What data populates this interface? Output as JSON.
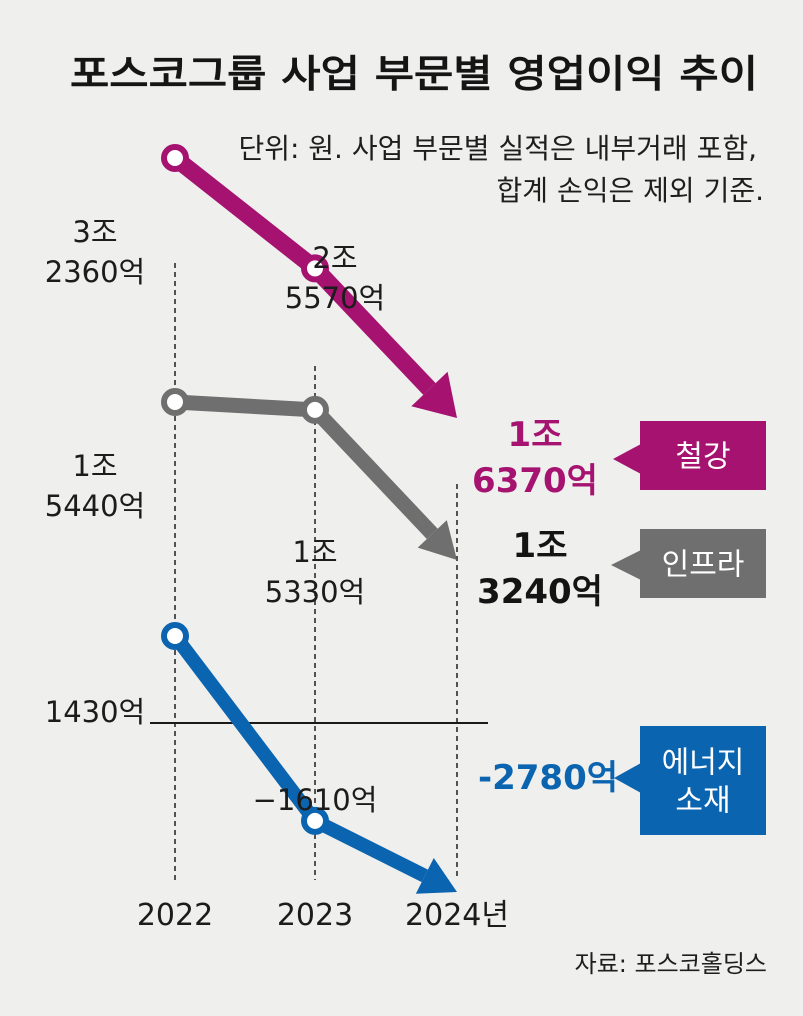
{
  "title": "포스코그룹 사업 부문별 영업이익 추이",
  "subtitle_lines": [
    "단위: 원. 사업 부문별 실적은 내부거래 포함,",
    "합계 손익은 제외 기준."
  ],
  "source": "자료: 포스코홀딩스",
  "colors": {
    "steel": "#a5126f",
    "infra": "#6f6f6f",
    "energy": "#0b64b0",
    "background": "#efefed"
  },
  "chart_data": {
    "type": "line",
    "x": [
      "2022",
      "2023",
      "2024년"
    ],
    "unit": "억원",
    "series": [
      {
        "name": "철강",
        "color": "#a5126f",
        "values": [
          32360,
          25570,
          16370
        ],
        "labels": [
          [
            "3조",
            "2360억"
          ],
          [
            "2조",
            "5570억"
          ],
          [
            "1조",
            "6370억"
          ]
        ]
      },
      {
        "name": "인프라",
        "color": "#6f6f6f",
        "values": [
          15440,
          15330,
          13240
        ],
        "labels": [
          [
            "1조",
            "5440억"
          ],
          [
            "1조",
            "5330억"
          ],
          [
            "1조",
            "3240억"
          ]
        ]
      },
      {
        "name": "에너지 소재",
        "tag_lines": [
          "에너지",
          "소재"
        ],
        "color": "#0b64b0",
        "values": [
          1430,
          -1610,
          -2780
        ],
        "labels": [
          [
            "1430억"
          ],
          [
            "−1610억"
          ],
          [
            "-2780억"
          ]
        ]
      }
    ]
  }
}
